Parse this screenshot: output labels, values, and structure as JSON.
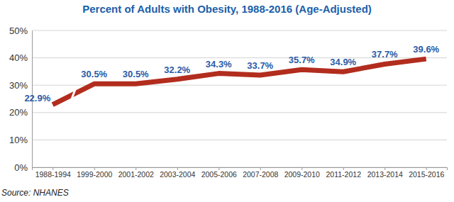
{
  "chart_data": {
    "type": "line",
    "title": "Percent of Adults with Obesity, 1988-2016 (Age-Adjusted)",
    "categories": [
      "1988-1994",
      "1999-2000",
      "2001-2002",
      "2003-2004",
      "2005-2006",
      "2007-2008",
      "2009-2010",
      "2011-2012",
      "2013-2014",
      "2015-2016"
    ],
    "values": [
      22.9,
      30.5,
      30.5,
      32.2,
      34.3,
      33.7,
      35.7,
      34.9,
      37.7,
      39.6
    ],
    "value_labels": [
      "22.9%",
      "30.5%",
      "30.5%",
      "32.2%",
      "34.3%",
      "33.7%",
      "35.7%",
      "34.9%",
      "37.7%",
      "39.6%"
    ],
    "color": "#b22d1e",
    "ylim": [
      0,
      50
    ],
    "yticks": [
      {
        "value": 0,
        "label": "0%"
      },
      {
        "value": 10,
        "label": "10%"
      },
      {
        "value": 20,
        "label": "20%"
      },
      {
        "value": 30,
        "label": "30%"
      },
      {
        "value": 40,
        "label": "40%"
      },
      {
        "value": 50,
        "label": "50%"
      }
    ],
    "grid": true,
    "data_labels": true,
    "annotations": [
      "Source: NHANES"
    ]
  }
}
